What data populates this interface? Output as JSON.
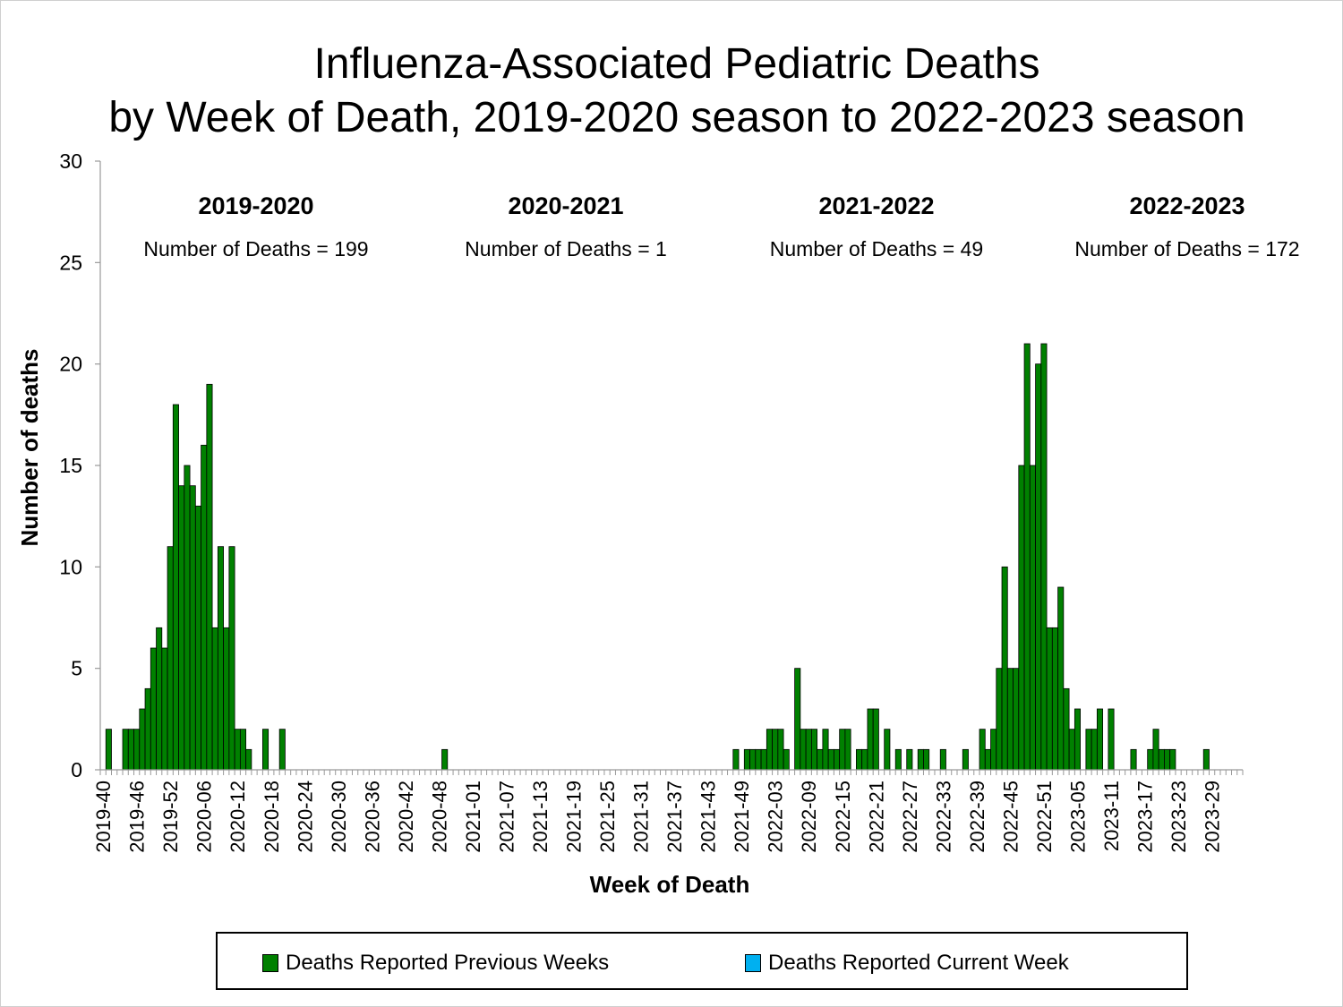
{
  "title_line1": "Influenza-Associated Pediatric Deaths",
  "title_line2": "by Week of Death, 2019-2020 season to 2022-2023 season",
  "chart_data": {
    "type": "bar",
    "title": "Influenza-Associated Pediatric Deaths by Week of Death, 2019-2020 season to 2022-2023 season",
    "xlabel": "Week of Death",
    "ylabel": "Number of deaths",
    "ylim": [
      0,
      30
    ],
    "yticks": [
      0,
      5,
      10,
      15,
      20,
      25,
      30
    ],
    "first_week": "2019-40",
    "num_weeks": 204,
    "xtick_labels": [
      "2019-40",
      "2019-46",
      "2019-52",
      "2020-06",
      "2020-12",
      "2020-18",
      "2020-24",
      "2020-30",
      "2020-36",
      "2020-42",
      "2020-48",
      "2021-01",
      "2021-07",
      "2021-13",
      "2021-19",
      "2021-25",
      "2021-31",
      "2021-37",
      "2021-43",
      "2021-49",
      "2022-03",
      "2022-09",
      "2022-15",
      "2022-21",
      "2022-27",
      "2022-33",
      "2022-39",
      "2022-45",
      "2022-51",
      "2023-05",
      "2023-11",
      "2023-17",
      "2023-23",
      "2023-29"
    ],
    "series": [
      {
        "name": "Deaths Reported Previous Weeks",
        "color": "#008000",
        "points": [
          {
            "week": "2019-41",
            "value": 2
          },
          {
            "week": "2019-44",
            "value": 2
          },
          {
            "week": "2019-45",
            "value": 2
          },
          {
            "week": "2019-46",
            "value": 2
          },
          {
            "week": "2019-47",
            "value": 3
          },
          {
            "week": "2019-48",
            "value": 4
          },
          {
            "week": "2019-49",
            "value": 6
          },
          {
            "week": "2019-50",
            "value": 7
          },
          {
            "week": "2019-51",
            "value": 6
          },
          {
            "week": "2019-52",
            "value": 11
          },
          {
            "week": "2020-01",
            "value": 18
          },
          {
            "week": "2020-02",
            "value": 14
          },
          {
            "week": "2020-03",
            "value": 15
          },
          {
            "week": "2020-04",
            "value": 14
          },
          {
            "week": "2020-05",
            "value": 13
          },
          {
            "week": "2020-06",
            "value": 16
          },
          {
            "week": "2020-07",
            "value": 19
          },
          {
            "week": "2020-08",
            "value": 7
          },
          {
            "week": "2020-09",
            "value": 11
          },
          {
            "week": "2020-10",
            "value": 7
          },
          {
            "week": "2020-11",
            "value": 11
          },
          {
            "week": "2020-12",
            "value": 2
          },
          {
            "week": "2020-13",
            "value": 2
          },
          {
            "week": "2020-14",
            "value": 1
          },
          {
            "week": "2020-17",
            "value": 2
          },
          {
            "week": "2020-20",
            "value": 2
          },
          {
            "week": "2020-49",
            "value": 1
          },
          {
            "week": "2021-48",
            "value": 1
          },
          {
            "week": "2021-50",
            "value": 1
          },
          {
            "week": "2021-51",
            "value": 1
          },
          {
            "week": "2021-52",
            "value": 1
          },
          {
            "week": "2022-01",
            "value": 1
          },
          {
            "week": "2022-02",
            "value": 2
          },
          {
            "week": "2022-03",
            "value": 2
          },
          {
            "week": "2022-04",
            "value": 2
          },
          {
            "week": "2022-05",
            "value": 1
          },
          {
            "week": "2022-07",
            "value": 5
          },
          {
            "week": "2022-08",
            "value": 2
          },
          {
            "week": "2022-09",
            "value": 2
          },
          {
            "week": "2022-10",
            "value": 2
          },
          {
            "week": "2022-11",
            "value": 1
          },
          {
            "week": "2022-12",
            "value": 2
          },
          {
            "week": "2022-13",
            "value": 1
          },
          {
            "week": "2022-14",
            "value": 1
          },
          {
            "week": "2022-15",
            "value": 2
          },
          {
            "week": "2022-16",
            "value": 2
          },
          {
            "week": "2022-18",
            "value": 1
          },
          {
            "week": "2022-19",
            "value": 1
          },
          {
            "week": "2022-20",
            "value": 3
          },
          {
            "week": "2022-21",
            "value": 3
          },
          {
            "week": "2022-23",
            "value": 2
          },
          {
            "week": "2022-25",
            "value": 1
          },
          {
            "week": "2022-27",
            "value": 1
          },
          {
            "week": "2022-29",
            "value": 1
          },
          {
            "week": "2022-30",
            "value": 1
          },
          {
            "week": "2022-33",
            "value": 1
          },
          {
            "week": "2022-37",
            "value": 1
          },
          {
            "week": "2022-40",
            "value": 2
          },
          {
            "week": "2022-41",
            "value": 1
          },
          {
            "week": "2022-42",
            "value": 2
          },
          {
            "week": "2022-43",
            "value": 5
          },
          {
            "week": "2022-44",
            "value": 10
          },
          {
            "week": "2022-45",
            "value": 5
          },
          {
            "week": "2022-46",
            "value": 5
          },
          {
            "week": "2022-47",
            "value": 15
          },
          {
            "week": "2022-48",
            "value": 21
          },
          {
            "week": "2022-49",
            "value": 15
          },
          {
            "week": "2022-50",
            "value": 20
          },
          {
            "week": "2022-51",
            "value": 21
          },
          {
            "week": "2022-52",
            "value": 7
          },
          {
            "week": "2023-01",
            "value": 7
          },
          {
            "week": "2023-02",
            "value": 9
          },
          {
            "week": "2023-03",
            "value": 4
          },
          {
            "week": "2023-04",
            "value": 2
          },
          {
            "week": "2023-05",
            "value": 3
          },
          {
            "week": "2023-07",
            "value": 2
          },
          {
            "week": "2023-08",
            "value": 2
          },
          {
            "week": "2023-09",
            "value": 3
          },
          {
            "week": "2023-11",
            "value": 3
          },
          {
            "week": "2023-15",
            "value": 1
          },
          {
            "week": "2023-18",
            "value": 1
          },
          {
            "week": "2023-19",
            "value": 2
          },
          {
            "week": "2023-20",
            "value": 1
          },
          {
            "week": "2023-21",
            "value": 1
          },
          {
            "week": "2023-22",
            "value": 1
          },
          {
            "week": "2023-28",
            "value": 1
          }
        ]
      },
      {
        "name": "Deaths Reported Current Week",
        "color": "#00b0f0",
        "points": []
      }
    ],
    "season_annotations": [
      {
        "season": "2019-2020",
        "text": "Number of Deaths = 199"
      },
      {
        "season": "2020-2021",
        "text": "Number of Deaths = 1"
      },
      {
        "season": "2021-2022",
        "text": "Number of Deaths = 49"
      },
      {
        "season": "2022-2023",
        "text": "Number of Deaths = 172"
      }
    ],
    "legend_position": "bottom",
    "grid": false
  },
  "legend": {
    "previous_label": "Deaths Reported Previous Weeks",
    "current_label": "Deaths Reported Current Week",
    "previous_color": "#008000",
    "current_color": "#00b0f0"
  }
}
